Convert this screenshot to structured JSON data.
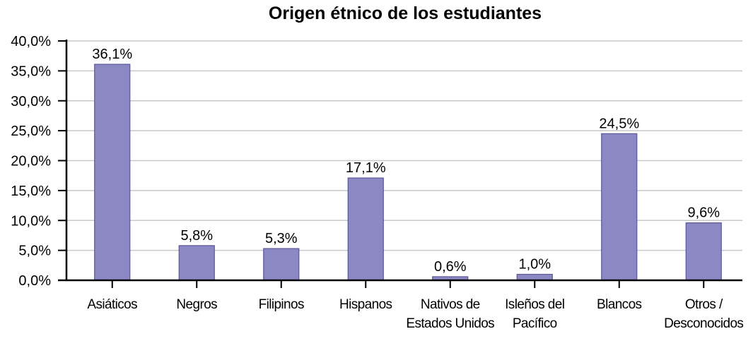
{
  "chart_data": {
    "type": "bar",
    "title": "Origen étnico de los estudiantes",
    "xlabel": "",
    "ylabel": "",
    "ylim": [
      0,
      40
    ],
    "grid": true,
    "legend": null,
    "yticks": [
      "0,0%",
      "5,0%",
      "10,0%",
      "15,0%",
      "20,0%",
      "25,0%",
      "30,0%",
      "35,0%",
      "40,0%"
    ],
    "categories": [
      [
        "Asiáticos"
      ],
      [
        "Negros"
      ],
      [
        "Filipinos"
      ],
      [
        "Hispanos"
      ],
      [
        "Nativos de",
        "Estados Unidos"
      ],
      [
        "Isleños del",
        "Pacífico"
      ],
      [
        "Blancos"
      ],
      [
        "Otros /",
        "Desconocidos"
      ]
    ],
    "values": [
      36.1,
      5.8,
      5.3,
      17.1,
      0.6,
      1.0,
      24.5,
      9.6
    ],
    "value_labels": [
      "36,1%",
      "5,8%",
      "5,3%",
      "17,1%",
      "0,6%",
      "1,0%",
      "24,5%",
      "9,6%"
    ],
    "colors": {
      "bar_fill": "#8b88c4",
      "bar_stroke": "#5a5799",
      "grid": "#c8c8c8",
      "axis": "#000000"
    }
  }
}
